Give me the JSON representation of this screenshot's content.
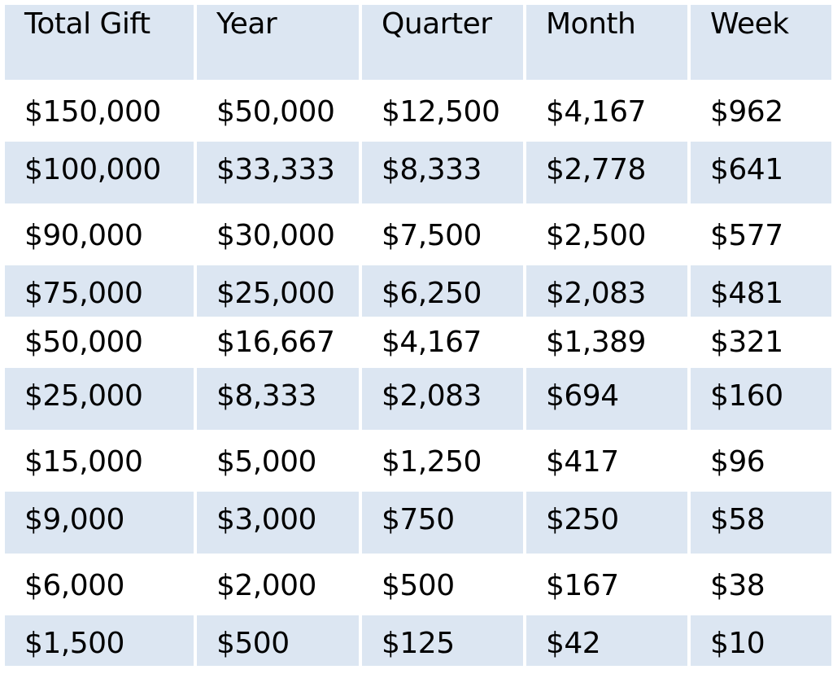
{
  "table": {
    "headers": [
      "Total Gift",
      "Year",
      "Quarter",
      "Month",
      "Week"
    ],
    "rows": [
      [
        "$150,000",
        "$50,000",
        "$12,500",
        "$4,167",
        "$962"
      ],
      [
        "$100,000",
        "$33,333",
        "$8,333",
        "$2,778",
        "$641"
      ],
      [
        "$90,000",
        "$30,000",
        "$7,500",
        "$2,500",
        "$577"
      ],
      [
        "$75,000",
        "$25,000",
        "$6,250",
        "$2,083",
        "$481"
      ],
      [
        "$50,000",
        "$16,667",
        "$4,167",
        "$1,389",
        "$321"
      ],
      [
        "$25,000",
        "$8,333",
        "$2,083",
        "$694",
        "$160"
      ],
      [
        "$15,000",
        "$5,000",
        "$1,250",
        "$417",
        "$96"
      ],
      [
        "$9,000",
        "$3,000",
        "$750",
        "$250",
        "$58"
      ],
      [
        "$6,000",
        "$2,000",
        "$500",
        "$167",
        "$38"
      ],
      [
        "$1,500",
        "$500",
        "$125",
        "$42",
        "$10"
      ]
    ]
  },
  "colors": {
    "band_fill": "#dce6f2",
    "background": "#ffffff",
    "text": "#000000"
  }
}
